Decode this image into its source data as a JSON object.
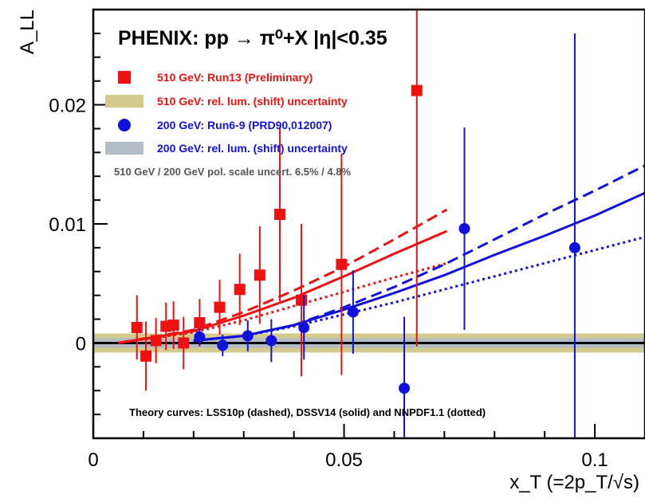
{
  "chart_data": {
    "type": "scatter",
    "title": "PHENIX: pp → π⁰+X  |η|<0.35",
    "xlabel": "x_T (=2p_T/√s)",
    "ylabel": "A_LL",
    "xlim": [
      0,
      0.11
    ],
    "ylim": [
      -0.008,
      0.028
    ],
    "x_ticks": [
      0,
      0.05,
      0.1
    ],
    "x_tick_labels": [
      "0",
      "0.05",
      "0.1"
    ],
    "y_ticks": [
      0,
      0.01,
      0.02
    ],
    "y_tick_labels": [
      "0",
      "0.01",
      "0.02"
    ],
    "grid": false,
    "legend_position": "top-left",
    "colors": {
      "red": "#ee1111",
      "blue": "#1111dd",
      "band_olive": "#d2cb8e",
      "band_gray": "#b4bcc4",
      "zero_line": "#000000",
      "note": "#555555"
    },
    "series": [
      {
        "name": "510 GeV: Run13 (Preliminary)",
        "marker": "square",
        "color": "#ee1111",
        "points": [
          {
            "x": 0.0087,
            "y": 0.0013,
            "err": 0.0027
          },
          {
            "x": 0.0105,
            "y": -0.0011,
            "err": 0.0029
          },
          {
            "x": 0.0125,
            "y": 0.0002,
            "err": 0.0019
          },
          {
            "x": 0.0145,
            "y": 0.0014,
            "err": 0.002
          },
          {
            "x": 0.016,
            "y": 0.0015,
            "err": 0.002
          },
          {
            "x": 0.018,
            "y": 0.0,
            "err": 0.0022
          },
          {
            "x": 0.0212,
            "y": 0.0017,
            "err": 0.002
          },
          {
            "x": 0.0252,
            "y": 0.003,
            "err": 0.0023
          },
          {
            "x": 0.0292,
            "y": 0.0045,
            "err": 0.003
          },
          {
            "x": 0.0332,
            "y": 0.0057,
            "err": 0.0041
          },
          {
            "x": 0.0372,
            "y": 0.0108,
            "err": 0.0073
          },
          {
            "x": 0.0415,
            "y": 0.0036,
            "err": 0.0064
          },
          {
            "x": 0.0495,
            "y": 0.0066,
            "err": 0.0093
          },
          {
            "x": 0.0645,
            "y": 0.0212,
            "err": 0.0215
          }
        ]
      },
      {
        "name": "200 GeV: Run6-9 (PRD90,012007)",
        "marker": "circle",
        "color": "#1111dd",
        "points": [
          {
            "x": 0.0212,
            "y": 0.0005,
            "err": 0.0007
          },
          {
            "x": 0.0258,
            "y": -0.0002,
            "err": 0.0009
          },
          {
            "x": 0.0308,
            "y": 0.0006,
            "err": 0.0013
          },
          {
            "x": 0.0355,
            "y": 0.0002,
            "err": 0.0018
          },
          {
            "x": 0.042,
            "y": 0.0013,
            "err": 0.0027
          },
          {
            "x": 0.0518,
            "y": 0.0026,
            "err": 0.0035
          },
          {
            "x": 0.062,
            "y": -0.0038,
            "err": 0.006
          },
          {
            "x": 0.074,
            "y": 0.0096,
            "err": 0.0085
          },
          {
            "x": 0.096,
            "y": 0.008,
            "err": 0.018
          }
        ]
      }
    ],
    "bands": [
      {
        "name": "510 GeV: rel. lum. (shift) uncertainty",
        "color": "#d2cb8e",
        "y_low": -0.0008,
        "y_high": 0.0008
      },
      {
        "name": "200 GeV: rel. lum. (shift) uncertainty",
        "color": "#b4bcc4",
        "y_low": -0.0004,
        "y_high": 0.0004
      }
    ],
    "theory_curves": [
      {
        "set": "510",
        "style": "dashed",
        "color": "#ee1111",
        "x": [
          0.005,
          0.02,
          0.03,
          0.04,
          0.05,
          0.06,
          0.0705
        ],
        "y": [
          0.0,
          0.0011,
          0.0026,
          0.0044,
          0.0064,
          0.0087,
          0.0112
        ]
      },
      {
        "set": "510",
        "style": "solid",
        "color": "#ee1111",
        "x": [
          0.005,
          0.02,
          0.03,
          0.04,
          0.05,
          0.06,
          0.0705
        ],
        "y": [
          0.0,
          0.001,
          0.0023,
          0.0038,
          0.0056,
          0.0075,
          0.0094
        ]
      },
      {
        "set": "510",
        "style": "dotted",
        "color": "#ee1111",
        "x": [
          0.005,
          0.02,
          0.03,
          0.04,
          0.05,
          0.06,
          0.0705
        ],
        "y": [
          0.0,
          0.0009,
          0.0019,
          0.0031,
          0.0043,
          0.0055,
          0.0067
        ]
      },
      {
        "set": "200",
        "style": "dashed",
        "color": "#1111dd",
        "x": [
          0.02,
          0.03,
          0.04,
          0.05,
          0.06,
          0.07,
          0.08,
          0.09,
          0.1,
          0.11
        ],
        "y": [
          0.0002,
          0.0006,
          0.0015,
          0.003,
          0.0047,
          0.0066,
          0.0087,
          0.0108,
          0.0128,
          0.0149
        ]
      },
      {
        "set": "200",
        "style": "solid",
        "color": "#1111dd",
        "x": [
          0.02,
          0.03,
          0.04,
          0.05,
          0.06,
          0.07,
          0.08,
          0.09,
          0.1,
          0.11
        ],
        "y": [
          0.0002,
          0.0006,
          0.0015,
          0.0028,
          0.0042,
          0.0057,
          0.0074,
          0.009,
          0.0107,
          0.0126
        ]
      },
      {
        "set": "200",
        "style": "dotted",
        "color": "#1111dd",
        "x": [
          0.02,
          0.03,
          0.04,
          0.05,
          0.06,
          0.07,
          0.08,
          0.09,
          0.1,
          0.11
        ],
        "y": [
          0.0002,
          0.0006,
          0.0014,
          0.0024,
          0.0034,
          0.0045,
          0.0056,
          0.0067,
          0.0078,
          0.0089
        ]
      }
    ],
    "legend": [
      {
        "label": "510 GeV: Run13 (Preliminary)",
        "swatch": "square",
        "color": "#ee1111"
      },
      {
        "label": "510 GeV: rel. lum. (shift) uncertainty",
        "swatch": "band",
        "color": "#d2cb8e",
        "text_color": "#ee1111"
      },
      {
        "label": "200 GeV: Run6-9 (PRD90,012007)",
        "swatch": "circle",
        "color": "#1111dd"
      },
      {
        "label": "200 GeV: rel. lum. (shift) uncertainty",
        "swatch": "band",
        "color": "#b4bcc4",
        "text_color": "#1111dd"
      }
    ],
    "annotations": {
      "pol_scale": "510 GeV / 200 GeV pol. scale uncert. 6.5% / 4.8%",
      "theory": "Theory curves: LSS10p (dashed), DSSV14 (solid) and NNPDF1.1 (dotted)"
    }
  }
}
